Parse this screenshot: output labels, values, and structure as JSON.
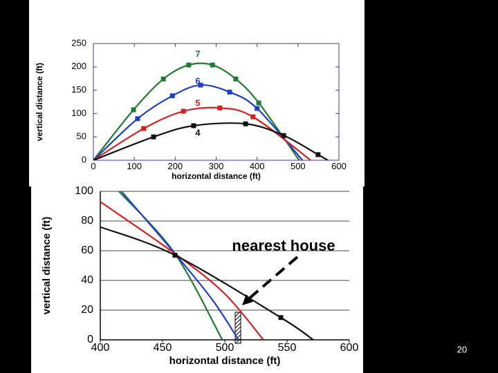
{
  "chart_data": [
    {
      "type": "line",
      "xlabel": "horizontal distance (ft)",
      "ylabel": "vertical distance (ft)",
      "xlim": [
        0,
        600
      ],
      "ylim": [
        0,
        250
      ],
      "xticks": [
        0,
        100,
        200,
        300,
        400,
        500,
        600
      ],
      "yticks": [
        0,
        50,
        100,
        150,
        200,
        250
      ],
      "grid": false,
      "series": [
        {
          "name": "7",
          "color": "#1f7a32",
          "markers": true,
          "x": [
            0,
            98,
            171,
            233,
            291,
            348,
            404,
            503
          ],
          "values": [
            0,
            108,
            174,
            204,
            204,
            174,
            123,
            0
          ]
        },
        {
          "name": "6",
          "color": "#1f3fc8",
          "markers": true,
          "x": [
            0,
            108,
            193,
            262,
            333,
            400,
            511
          ],
          "values": [
            0,
            89,
            138,
            161,
            146,
            111,
            0
          ]
        },
        {
          "name": "5",
          "color": "#d42020",
          "markers": true,
          "x": [
            0,
            123,
            220,
            309,
            390,
            531
          ],
          "values": [
            0,
            68,
            105,
            112,
            93,
            0
          ]
        },
        {
          "name": "4",
          "color": "#111111",
          "markers": true,
          "x": [
            0,
            147,
            245,
            372,
            465,
            549,
            573
          ],
          "values": [
            0,
            50,
            74,
            78,
            53,
            12,
            0
          ]
        }
      ]
    },
    {
      "type": "line",
      "xlabel": "horizontal distance (ft)",
      "ylabel": "vertical distance (ft)",
      "xlim": [
        400,
        600
      ],
      "ylim": [
        0,
        100
      ],
      "xticks": [
        400,
        450,
        500,
        550,
        600
      ],
      "yticks": [
        0,
        20,
        40,
        60,
        80,
        100
      ],
      "grid": true,
      "annotation": "nearest house",
      "series": [
        {
          "color": "#1f7a32",
          "markers": false,
          "x": [
            415,
            460,
            498
          ],
          "values": [
            100,
            58,
            0
          ]
        },
        {
          "color": "#1f3fc8",
          "markers": false,
          "x": [
            417,
            460,
            490,
            511
          ],
          "values": [
            100,
            58,
            27,
            0
          ]
        },
        {
          "color": "#d42020",
          "markers": false,
          "x": [
            400,
            460,
            500,
            531
          ],
          "values": [
            93,
            58,
            31,
            0
          ]
        },
        {
          "color": "#111111",
          "markers": true,
          "x": [
            400,
            460,
            545,
            571
          ],
          "values": [
            76,
            57,
            15,
            0
          ]
        }
      ]
    }
  ],
  "page_number": "20"
}
